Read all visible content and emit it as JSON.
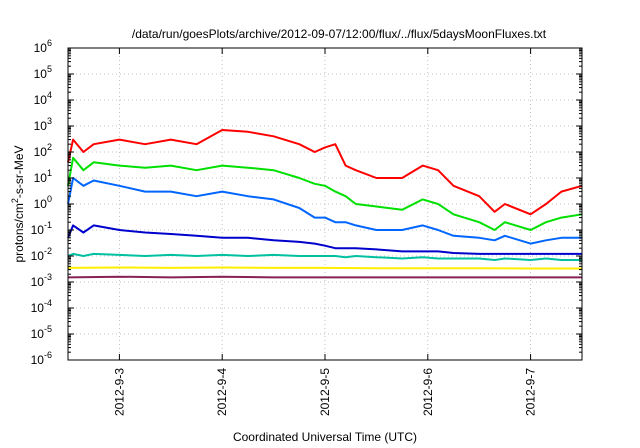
{
  "chart_data": {
    "type": "line",
    "title": "/data/run/goesPlots/archive/2012-09-07/12:00/flux/../flux/5daysMoonFluxes.txt",
    "xlabel": "Coordinated Universal Time (UTC)",
    "ylabel_main": "protons/cm",
    "ylabel_sup": "2",
    "ylabel_tail": "-s-sr-MeV",
    "y_scale": "log",
    "ylim": [
      1e-06,
      1000000.0
    ],
    "y_ticks": [
      {
        "value": 1e-06,
        "base": "10",
        "exp": "-6"
      },
      {
        "value": 1e-05,
        "base": "10",
        "exp": "-5"
      },
      {
        "value": 0.0001,
        "base": "10",
        "exp": "-4"
      },
      {
        "value": 0.001,
        "base": "10",
        "exp": "-3"
      },
      {
        "value": 0.01,
        "base": "10",
        "exp": "-2"
      },
      {
        "value": 0.1,
        "base": "10",
        "exp": "-1"
      },
      {
        "value": 1,
        "base": "10",
        "exp": "0"
      },
      {
        "value": 10,
        "base": "10",
        "exp": "1"
      },
      {
        "value": 100,
        "base": "10",
        "exp": "2"
      },
      {
        "value": 1000,
        "base": "10",
        "exp": "3"
      },
      {
        "value": 10000,
        "base": "10",
        "exp": "4"
      },
      {
        "value": 100000,
        "base": "10",
        "exp": "5"
      },
      {
        "value": 1000000,
        "base": "10",
        "exp": "6"
      }
    ],
    "xlim": [
      "2012-09-02 12:00",
      "2012-09-07 12:00"
    ],
    "x_ticks": [
      {
        "value": "2012-09-03 00:00",
        "label": "2012-9-3"
      },
      {
        "value": "2012-09-04 00:00",
        "label": "2012-9-4"
      },
      {
        "value": "2012-09-05 00:00",
        "label": "2012-9-5"
      },
      {
        "value": "2012-09-06 00:00",
        "label": "2012-9-6"
      },
      {
        "value": "2012-09-07 00:00",
        "label": "2012-9-7"
      }
    ],
    "grid": true,
    "legend": "none",
    "series": [
      {
        "color": "#ff0000",
        "x": [
          "2012-09-02 12:00",
          "2012-09-02 13:12",
          "2012-09-02 15:36",
          "2012-09-02 18:00",
          "2012-09-03 00:00",
          "2012-09-03 06:00",
          "2012-09-03 12:00",
          "2012-09-03 18:00",
          "2012-09-04 00:00",
          "2012-09-04 06:00",
          "2012-09-04 12:00",
          "2012-09-04 18:00",
          "2012-09-04 21:36",
          "2012-09-05 00:00",
          "2012-09-05 02:24",
          "2012-09-05 04:48",
          "2012-09-05 07:12",
          "2012-09-05 12:00",
          "2012-09-05 18:00",
          "2012-09-05 22:48",
          "2012-09-06 02:24",
          "2012-09-06 06:00",
          "2012-09-06 12:00",
          "2012-09-06 15:36",
          "2012-09-06 18:00",
          "2012-09-07 00:00",
          "2012-09-07 03:36",
          "2012-09-07 07:12",
          "2012-09-07 12:00"
        ],
        "y": [
          40,
          300,
          100,
          200,
          300,
          200,
          300,
          200,
          700,
          600,
          400,
          200,
          100,
          150,
          200,
          30,
          20,
          10,
          10,
          30,
          20,
          5,
          2,
          0.5,
          1,
          0.4,
          1,
          3,
          5
        ]
      },
      {
        "color": "#00e000",
        "x": [
          "2012-09-02 12:00",
          "2012-09-02 13:12",
          "2012-09-02 15:36",
          "2012-09-02 18:00",
          "2012-09-03 00:00",
          "2012-09-03 06:00",
          "2012-09-03 12:00",
          "2012-09-03 18:00",
          "2012-09-04 00:00",
          "2012-09-04 06:00",
          "2012-09-04 12:00",
          "2012-09-04 18:00",
          "2012-09-04 21:36",
          "2012-09-05 00:00",
          "2012-09-05 02:24",
          "2012-09-05 04:48",
          "2012-09-05 07:12",
          "2012-09-05 12:00",
          "2012-09-05 18:00",
          "2012-09-05 22:48",
          "2012-09-06 02:24",
          "2012-09-06 06:00",
          "2012-09-06 12:00",
          "2012-09-06 15:36",
          "2012-09-06 18:00",
          "2012-09-07 00:00",
          "2012-09-07 03:36",
          "2012-09-07 07:12",
          "2012-09-07 12:00"
        ],
        "y": [
          5,
          60,
          20,
          40,
          30,
          25,
          30,
          20,
          30,
          25,
          20,
          10,
          6,
          5,
          3,
          2,
          1,
          0.8,
          0.6,
          1.5,
          1,
          0.4,
          0.2,
          0.1,
          0.2,
          0.1,
          0.2,
          0.3,
          0.4
        ]
      },
      {
        "color": "#0066ff",
        "x": [
          "2012-09-02 12:00",
          "2012-09-02 13:12",
          "2012-09-02 15:36",
          "2012-09-02 18:00",
          "2012-09-03 00:00",
          "2012-09-03 06:00",
          "2012-09-03 12:00",
          "2012-09-03 18:00",
          "2012-09-04 00:00",
          "2012-09-04 06:00",
          "2012-09-04 12:00",
          "2012-09-04 18:00",
          "2012-09-04 21:36",
          "2012-09-05 00:00",
          "2012-09-05 02:24",
          "2012-09-05 04:48",
          "2012-09-05 07:12",
          "2012-09-05 12:00",
          "2012-09-05 18:00",
          "2012-09-05 22:48",
          "2012-09-06 02:24",
          "2012-09-06 06:00",
          "2012-09-06 12:00",
          "2012-09-06 15:36",
          "2012-09-06 18:00",
          "2012-09-07 00:00",
          "2012-09-07 03:36",
          "2012-09-07 07:12",
          "2012-09-07 12:00"
        ],
        "y": [
          1,
          10,
          5,
          8,
          5,
          3,
          3,
          2,
          3,
          2,
          1.5,
          0.7,
          0.3,
          0.3,
          0.2,
          0.2,
          0.15,
          0.1,
          0.1,
          0.15,
          0.1,
          0.06,
          0.05,
          0.04,
          0.06,
          0.03,
          0.04,
          0.05,
          0.05
        ]
      },
      {
        "color": "#0000cc",
        "x": [
          "2012-09-02 12:00",
          "2012-09-02 13:12",
          "2012-09-02 15:36",
          "2012-09-02 18:00",
          "2012-09-03 00:00",
          "2012-09-03 06:00",
          "2012-09-03 12:00",
          "2012-09-03 18:00",
          "2012-09-04 00:00",
          "2012-09-04 06:00",
          "2012-09-04 12:00",
          "2012-09-04 18:00",
          "2012-09-04 21:36",
          "2012-09-05 00:00",
          "2012-09-05 02:24",
          "2012-09-05 04:48",
          "2012-09-05 07:12",
          "2012-09-05 12:00",
          "2012-09-05 18:00",
          "2012-09-05 22:48",
          "2012-09-06 02:24",
          "2012-09-06 06:00",
          "2012-09-06 12:00",
          "2012-09-06 15:36",
          "2012-09-06 18:00",
          "2012-09-07 00:00",
          "2012-09-07 03:36",
          "2012-09-07 07:12",
          "2012-09-07 12:00"
        ],
        "y": [
          0.05,
          0.15,
          0.08,
          0.15,
          0.1,
          0.08,
          0.07,
          0.06,
          0.05,
          0.05,
          0.04,
          0.035,
          0.03,
          0.025,
          0.02,
          0.02,
          0.02,
          0.018,
          0.015,
          0.015,
          0.015,
          0.013,
          0.012,
          0.012,
          0.012,
          0.012,
          0.012,
          0.012,
          0.012
        ]
      },
      {
        "color": "#00c0a0",
        "x": [
          "2012-09-02 12:00",
          "2012-09-02 13:12",
          "2012-09-02 15:36",
          "2012-09-02 18:00",
          "2012-09-03 00:00",
          "2012-09-03 06:00",
          "2012-09-03 12:00",
          "2012-09-03 18:00",
          "2012-09-04 00:00",
          "2012-09-04 06:00",
          "2012-09-04 12:00",
          "2012-09-04 18:00",
          "2012-09-04 21:36",
          "2012-09-05 00:00",
          "2012-09-05 02:24",
          "2012-09-05 04:48",
          "2012-09-05 07:12",
          "2012-09-05 12:00",
          "2012-09-05 18:00",
          "2012-09-05 22:48",
          "2012-09-06 02:24",
          "2012-09-06 06:00",
          "2012-09-06 12:00",
          "2012-09-06 15:36",
          "2012-09-06 18:00",
          "2012-09-07 00:00",
          "2012-09-07 03:36",
          "2012-09-07 07:12",
          "2012-09-07 12:00"
        ],
        "y": [
          0.01,
          0.012,
          0.01,
          0.012,
          0.011,
          0.01,
          0.011,
          0.01,
          0.011,
          0.01,
          0.011,
          0.01,
          0.01,
          0.01,
          0.01,
          0.009,
          0.01,
          0.009,
          0.008,
          0.009,
          0.008,
          0.008,
          0.008,
          0.007,
          0.008,
          0.007,
          0.008,
          0.007,
          0.007
        ]
      },
      {
        "color": "#ffee00",
        "x": [
          "2012-09-02 12:00",
          "2012-09-03 00:00",
          "2012-09-03 12:00",
          "2012-09-04 00:00",
          "2012-09-04 12:00",
          "2012-09-05 00:00",
          "2012-09-05 12:00",
          "2012-09-06 00:00",
          "2012-09-06 12:00",
          "2012-09-07 00:00",
          "2012-09-07 12:00"
        ],
        "y": [
          0.0035,
          0.0036,
          0.0035,
          0.0036,
          0.0035,
          0.0035,
          0.0034,
          0.0034,
          0.0034,
          0.0033,
          0.0033
        ]
      },
      {
        "color": "#882255",
        "x": [
          "2012-09-02 12:00",
          "2012-09-03 00:00",
          "2012-09-03 12:00",
          "2012-09-04 00:00",
          "2012-09-04 12:00",
          "2012-09-05 00:00",
          "2012-09-05 12:00",
          "2012-09-06 00:00",
          "2012-09-06 12:00",
          "2012-09-07 00:00",
          "2012-09-07 12:00"
        ],
        "y": [
          0.0015,
          0.0016,
          0.0015,
          0.0016,
          0.0015,
          0.0015,
          0.0015,
          0.0015,
          0.0015,
          0.0015,
          0.0015
        ]
      }
    ]
  }
}
